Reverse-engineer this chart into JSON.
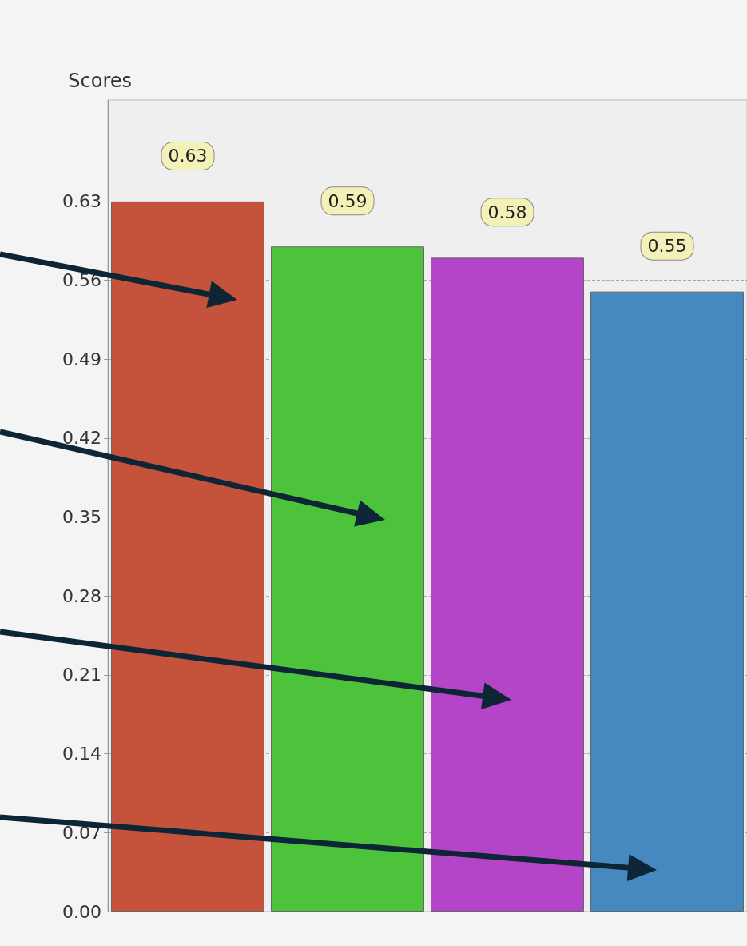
{
  "chart_data": {
    "type": "bar",
    "ylabel": "Scores",
    "categories": [
      null,
      null,
      null,
      null
    ],
    "values": [
      0.63,
      0.59,
      0.58,
      0.55
    ],
    "colors": [
      "#c5523b",
      "#4cc33b",
      "#b444c8",
      "#4589c0"
    ],
    "ylim": [
      0,
      0.72
    ],
    "yticks": [
      {
        "value": 0,
        "label": "0.00"
      },
      0.07,
      0.14,
      0.21,
      0.28,
      0.35,
      0.42,
      0.49,
      0.56,
      0.63
    ],
    "grid": "y",
    "data_labels": true
  }
}
